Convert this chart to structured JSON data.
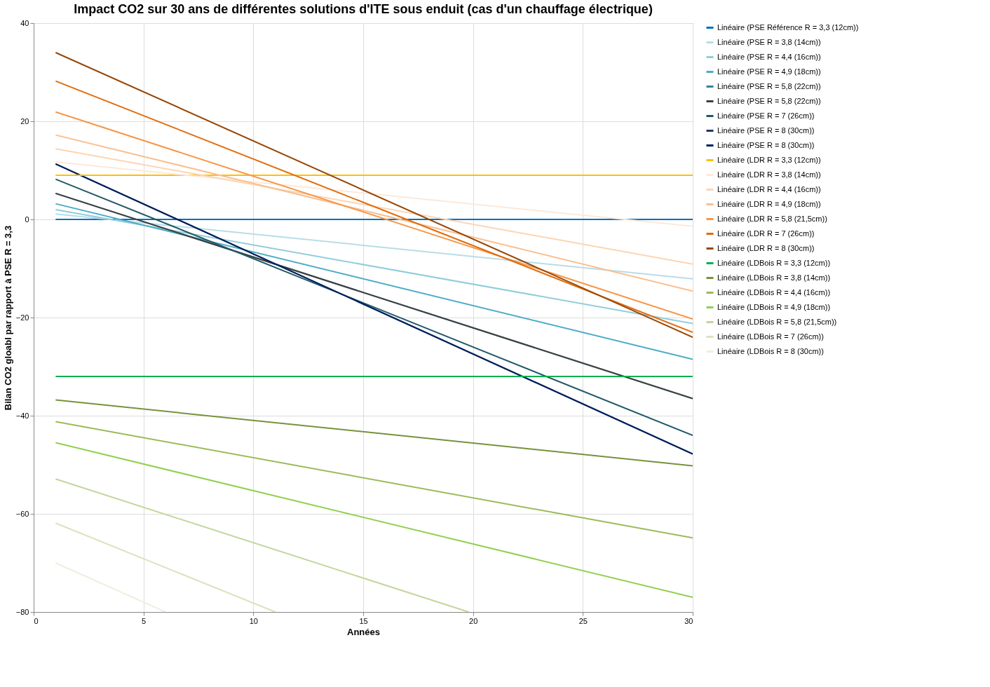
{
  "chart_data": {
    "type": "line",
    "title": "Impact CO2 sur 30 ans de différentes solutions d'ITE sous enduit (cas d'un chauffage électrique)",
    "xlabel": "Années",
    "ylabel": "Bilan CO2 gloabl par rapport à PSE R = 3,3",
    "xlim": [
      0,
      30
    ],
    "xticks": [
      0,
      5,
      10,
      15,
      20,
      25,
      30
    ],
    "ylim": [
      -80,
      40
    ],
    "yticks": [
      -80,
      -60,
      -40,
      -20,
      0,
      20,
      40
    ],
    "grid": true,
    "legend": "right",
    "marker": "none",
    "line_style": "solid",
    "series": [
      {
        "name": "Linéaire (PSE Référence R = 3,3 (12cm))",
        "color": "#0070c0",
        "x": [
          1,
          30
        ],
        "values": [
          0,
          0
        ]
      },
      {
        "name": "Linéaire (PSE R = 3,8 (14cm))",
        "color": "#b7dde8",
        "x": [
          1,
          30
        ],
        "values": [
          1.1,
          -12.1
        ]
      },
      {
        "name": "Linéaire (PSE R = 4,4 (16cm))",
        "color": "#92cddc",
        "x": [
          1,
          30
        ],
        "values": [
          2.0,
          -21.2
        ]
      },
      {
        "name": "Linéaire (PSE R = 4,9 (18cm))",
        "color": "#4bacc6",
        "x": [
          1,
          30
        ],
        "values": [
          3.2,
          -28.5
        ]
      },
      {
        "name": "Linéaire (PSE R = 5,8 (22cm))",
        "color": "#31859c",
        "x": [
          1,
          30
        ],
        "values": [
          5.3,
          -36.5
        ]
      },
      {
        "name": "Linéaire (PSE R = 5,8 (22cm))",
        "color": "#404040",
        "x": [
          1,
          30
        ],
        "values": [
          5.3,
          -36.5
        ]
      },
      {
        "name": "Linéaire (PSE R = 7 (26cm))",
        "color": "#215967",
        "x": [
          1,
          30
        ],
        "values": [
          8.2,
          -44
        ]
      },
      {
        "name": "Linéaire (PSE R = 8 (30cm))",
        "color": "#1f3864",
        "x": [
          1,
          30
        ],
        "values": [
          11.3,
          -47.8
        ]
      },
      {
        "name": "Linéaire (PSE R = 8 (30cm))",
        "color": "#002060",
        "x": [
          1,
          30
        ],
        "values": [
          11.3,
          -47.8
        ]
      },
      {
        "name": "Linéaire (LDR R = 3,3 (12cm))",
        "color": "#ffc000",
        "x": [
          1,
          30
        ],
        "values": [
          9,
          9
        ]
      },
      {
        "name": "Linéaire (LDR R = 3,8 (14cm))",
        "color": "#fde9d9",
        "x": [
          1,
          30
        ],
        "values": [
          11.7,
          -1.4
        ]
      },
      {
        "name": "Linéaire (LDR R = 4,4 (16cm))",
        "color": "#fcd5b4",
        "x": [
          1,
          30
        ],
        "values": [
          14.4,
          -9.1
        ]
      },
      {
        "name": "Linéaire (LDR R = 4,9 (18cm))",
        "color": "#fabf8f",
        "x": [
          1,
          30
        ],
        "values": [
          17.2,
          -14.6
        ]
      },
      {
        "name": "Linéaire (LDR R = 5,8 (21,5cm))",
        "color": "#f79646",
        "x": [
          1,
          30
        ],
        "values": [
          21.9,
          -20.3
        ]
      },
      {
        "name": "Linéaire (LDR R = 7 (26cm))",
        "color": "#e26b0a",
        "x": [
          1,
          30
        ],
        "values": [
          28.2,
          -23
        ]
      },
      {
        "name": "Linéaire (LDR R = 8 (30cm))",
        "color": "#974706",
        "x": [
          1,
          30
        ],
        "values": [
          34,
          -24
        ]
      },
      {
        "name": "Linéaire (LDBois R = 3,3 (12cm))",
        "color": "#00b050",
        "x": [
          1,
          30
        ],
        "values": [
          -32,
          -32
        ]
      },
      {
        "name": "Linéaire (LDBois R = 3,8 (14cm))",
        "color": "#76923c",
        "x": [
          1,
          30
        ],
        "values": [
          -36.8,
          -50.2
        ]
      },
      {
        "name": "Linéaire (LDBois R = 4,4 (16cm))",
        "color": "#9bbb59",
        "x": [
          1,
          30
        ],
        "values": [
          -41.2,
          -64.9
        ]
      },
      {
        "name": "Linéaire (LDBois R = 4,9 (18cm))",
        "color": "#92d050",
        "x": [
          1,
          30
        ],
        "values": [
          -45.5,
          -77
        ]
      },
      {
        "name": "Linéaire (LDBois R = 5,8 (21,5cm))",
        "color": "#c3d69b",
        "x": [
          1,
          19.8
        ],
        "values": [
          -52.9,
          -80
        ]
      },
      {
        "name": "Linéaire (LDBois R = 7 (26cm))",
        "color": "#d7e4bc",
        "x": [
          1,
          11
        ],
        "values": [
          -61.9,
          -80
        ]
      },
      {
        "name": "Linéaire (LDBois R = 8 (30cm))",
        "color": "#ebf1de",
        "x": [
          1,
          6
        ],
        "values": [
          -70,
          -80
        ]
      }
    ]
  }
}
